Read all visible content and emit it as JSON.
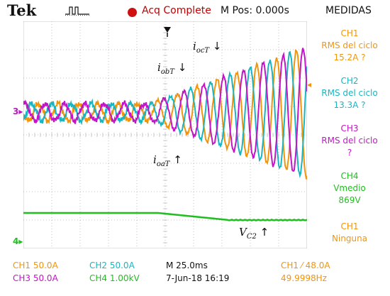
{
  "header": {
    "brand": "Tek",
    "trigger_icon": "trigger-pulse-icon",
    "status_icon": "record-dot-icon",
    "acq_status": "Acq Complete",
    "mpos": "M Pos: 0.000s",
    "menu_title": "MEDIDAS"
  },
  "measurements": [
    {
      "ch": "CH1",
      "line1": "RMS del ciclo",
      "value": "15.2A ?",
      "color": "#f2950c"
    },
    {
      "ch": "CH2",
      "line1": "RMS del ciclo",
      "value": "13.3A ?",
      "color": "#19b6c2"
    },
    {
      "ch": "CH3",
      "line1": "RMS del ciclo",
      "value": "?",
      "color": "#c216c6"
    },
    {
      "ch": "CH4",
      "line1": "Vmedio",
      "value": "869V",
      "color": "#1fbf1f"
    },
    {
      "ch": "CH1",
      "line1": "Ninguna",
      "value": "",
      "color": "#f2950c"
    }
  ],
  "footer": {
    "ch1_scale": "CH1  50.0A",
    "ch2_scale": "CH2  50.0A",
    "ch3_scale": "CH3  50.0A",
    "ch4_scale": "CH4  1.00kV",
    "timebase": "M 25.0ms",
    "date": "7-Jun-18 16:19",
    "trigger": "CH1 ⁄ 48.0A",
    "frequency": "49.9998Hz"
  },
  "markers": {
    "ch3": "3",
    "ch4": "4"
  },
  "annotations": {
    "iocT": {
      "base": "i",
      "sub": "ocT",
      "arrow": "↓"
    },
    "iobT": {
      "base": "i",
      "sub": "obT",
      "arrow": "↓"
    },
    "ioaT": {
      "base": "i",
      "sub": "oaT",
      "arrow": "↑"
    },
    "vc2": {
      "base": "V",
      "sub": "C2",
      "arrow": "↑"
    }
  },
  "colors": {
    "ch1": "#f2950c",
    "ch2": "#19b6c2",
    "ch3": "#c216c6",
    "ch4": "#1fbf1f"
  }
}
